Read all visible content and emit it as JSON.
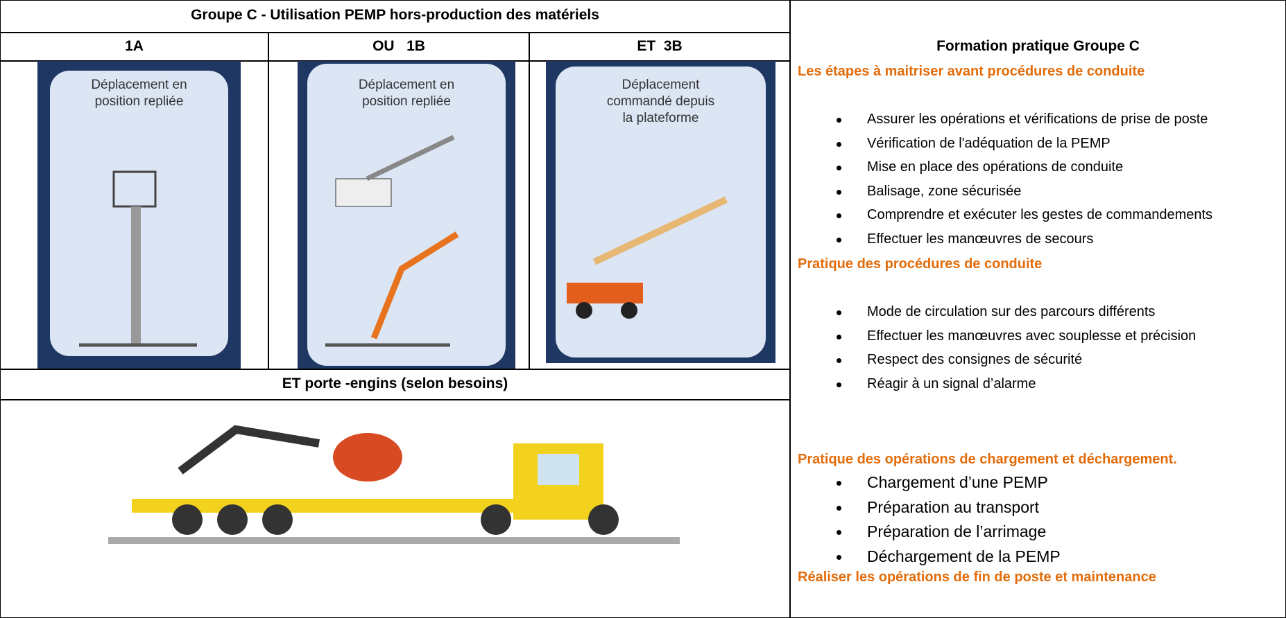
{
  "left": {
    "title": "Groupe C - Utilisation PEMP hors-production des matériels",
    "headers": [
      "1A",
      "OU   1B",
      "ET  3B"
    ],
    "panels": [
      {
        "caption": "Déplacement en position repliée"
      },
      {
        "caption": "Déplacement en position repliée"
      },
      {
        "caption": "Déplacement commandé depuis la plateforme"
      }
    ],
    "transport_title": "ET porte -engins (selon besoins)"
  },
  "right": {
    "title": "Formation pratique Groupe C",
    "sections": [
      {
        "heading": "Les étapes à maitriser avant procédures de conduite",
        "items": [
          "Assurer les opérations et vérifications de prise de poste",
          "Vérification de l'adéquation de la PEMP",
          "Mise en place des opérations de conduite",
          "Balisage, zone sécurisée",
          "Comprendre et exécuter les gestes de commandements",
          "Effectuer les manœuvres de secours"
        ]
      },
      {
        "heading": "Pratique des procédures de conduite",
        "items": [
          "Mode de circulation sur des parcours différents",
          "Effectuer les manœuvres avec souplesse et précision",
          "Respect des consignes de sécurité",
          "Réagir à un signal d’alarme"
        ]
      },
      {
        "heading": "Pratique des opérations de chargement et déchargement.",
        "items": [
          "Chargement d’une PEMP",
          "Préparation au transport",
          "Préparation de l’arrimage",
          "Déchargement de la PEMP"
        ]
      },
      {
        "heading": "Réaliser les opérations de fin de poste et maintenance"
      }
    ]
  }
}
